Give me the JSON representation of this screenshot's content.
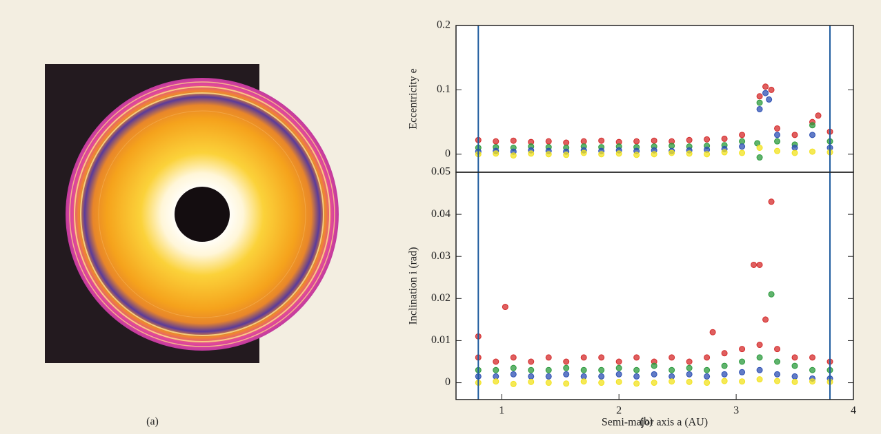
{
  "panel_labels": {
    "a": "(a)",
    "b": "(b)"
  },
  "chart_data": [
    {
      "type": "scatter",
      "y_label": "Eccentricity e",
      "xlim": [
        0.61,
        4
      ],
      "ylim": [
        -0.028,
        0.2
      ],
      "yticks": [
        0,
        0.1,
        0.2
      ],
      "vlines": [
        0.8,
        3.8
      ],
      "series": [
        {
          "color": "#d42a2a",
          "x": [
            0.8,
            0.95,
            1.1,
            1.25,
            1.4,
            1.55,
            1.7,
            1.85,
            2.0,
            2.15,
            2.3,
            2.45,
            2.6,
            2.75,
            2.9,
            3.05,
            3.2,
            3.35,
            3.5,
            3.65,
            3.8,
            3.25,
            3.3,
            3.7
          ],
          "values": [
            0.022,
            0.02,
            0.021,
            0.019,
            0.02,
            0.018,
            0.02,
            0.021,
            0.019,
            0.02,
            0.021,
            0.02,
            0.022,
            0.023,
            0.024,
            0.03,
            0.09,
            0.04,
            0.03,
            0.05,
            0.035,
            0.105,
            0.1,
            0.06
          ]
        },
        {
          "color": "#2b9a3c",
          "x": [
            0.8,
            0.95,
            1.1,
            1.25,
            1.4,
            1.55,
            1.7,
            1.85,
            2.0,
            2.15,
            2.3,
            2.45,
            2.6,
            2.75,
            2.9,
            3.05,
            3.2,
            3.35,
            3.5,
            3.65,
            3.8,
            3.18,
            3.2
          ],
          "values": [
            0.01,
            0.011,
            0.01,
            0.012,
            0.011,
            0.01,
            0.012,
            0.011,
            0.012,
            0.011,
            0.012,
            0.013,
            0.012,
            0.013,
            0.014,
            0.02,
            0.08,
            0.02,
            0.015,
            0.045,
            0.02,
            0.017,
            -0.005
          ]
        },
        {
          "color": "#2c4fb3",
          "x": [
            0.8,
            0.95,
            1.1,
            1.25,
            1.4,
            1.55,
            1.7,
            1.85,
            2.0,
            2.15,
            2.3,
            2.45,
            2.6,
            2.75,
            2.9,
            3.05,
            3.2,
            3.35,
            3.5,
            3.65,
            3.8,
            3.25,
            3.28
          ],
          "values": [
            0.004,
            0.005,
            0.004,
            0.006,
            0.005,
            0.004,
            0.006,
            0.005,
            0.006,
            0.005,
            0.006,
            0.005,
            0.006,
            0.007,
            0.008,
            0.012,
            0.07,
            0.03,
            0.01,
            0.03,
            0.01,
            0.095,
            0.085
          ]
        },
        {
          "color": "#f2e21c",
          "x": [
            0.8,
            0.95,
            1.1,
            1.25,
            1.4,
            1.55,
            1.7,
            1.85,
            2.0,
            2.15,
            2.3,
            2.45,
            2.6,
            2.75,
            2.9,
            3.05,
            3.2,
            3.35,
            3.5,
            3.65,
            3.8
          ],
          "values": [
            0,
            0.001,
            -0.002,
            0.001,
            0,
            -0.001,
            0.002,
            0,
            0.001,
            -0.001,
            0,
            0.002,
            0.001,
            0,
            0.003,
            0.002,
            0.01,
            0.005,
            0.002,
            0.004,
            0.003
          ]
        }
      ]
    },
    {
      "type": "scatter",
      "y_label": "Inclination i  (rad)",
      "x_label": "Semi-major axis a  (AU)",
      "xlim": [
        0.61,
        4
      ],
      "ylim": [
        -0.004,
        0.05
      ],
      "xticks": [
        1,
        2,
        3,
        4
      ],
      "yticks": [
        0,
        0.01,
        0.02,
        0.03,
        0.04,
        0.05
      ],
      "vlines": [
        0.8,
        3.8
      ],
      "series": [
        {
          "color": "#d42a2a",
          "x": [
            0.8,
            0.95,
            1.1,
            1.25,
            1.4,
            1.55,
            1.7,
            1.85,
            2.0,
            2.15,
            2.3,
            2.45,
            2.6,
            2.75,
            2.9,
            3.05,
            3.2,
            3.35,
            3.5,
            3.65,
            3.8,
            0.8,
            1.03,
            2.8,
            3.15,
            3.2,
            3.3,
            3.25
          ],
          "values": [
            0.006,
            0.005,
            0.006,
            0.005,
            0.006,
            0.005,
            0.006,
            0.006,
            0.005,
            0.006,
            0.005,
            0.006,
            0.005,
            0.006,
            0.007,
            0.008,
            0.009,
            0.008,
            0.006,
            0.006,
            0.005,
            0.011,
            0.018,
            0.012,
            0.028,
            0.028,
            0.043,
            0.015
          ]
        },
        {
          "color": "#2b9a3c",
          "x": [
            0.8,
            0.95,
            1.1,
            1.25,
            1.4,
            1.55,
            1.7,
            1.85,
            2.0,
            2.15,
            2.3,
            2.45,
            2.6,
            2.75,
            2.9,
            3.05,
            3.2,
            3.35,
            3.5,
            3.65,
            3.8,
            3.3
          ],
          "values": [
            0.003,
            0.003,
            0.0035,
            0.003,
            0.003,
            0.0035,
            0.003,
            0.003,
            0.0035,
            0.003,
            0.004,
            0.003,
            0.0035,
            0.003,
            0.004,
            0.005,
            0.006,
            0.005,
            0.004,
            0.003,
            0.003,
            0.021
          ]
        },
        {
          "color": "#2c4fb3",
          "x": [
            0.8,
            0.95,
            1.1,
            1.25,
            1.4,
            1.55,
            1.7,
            1.85,
            2.0,
            2.15,
            2.3,
            2.45,
            2.6,
            2.75,
            2.9,
            3.05,
            3.2,
            3.35,
            3.5,
            3.65,
            3.8
          ],
          "values": [
            0.0015,
            0.0015,
            0.002,
            0.0015,
            0.0015,
            0.002,
            0.0015,
            0.0015,
            0.002,
            0.0015,
            0.002,
            0.0015,
            0.002,
            0.0015,
            0.002,
            0.0025,
            0.003,
            0.002,
            0.0015,
            0.001,
            0.001
          ]
        },
        {
          "color": "#f2e21c",
          "x": [
            0.8,
            0.95,
            1.1,
            1.25,
            1.4,
            1.55,
            1.7,
            1.85,
            2.0,
            2.15,
            2.3,
            2.45,
            2.6,
            2.75,
            2.9,
            3.05,
            3.2,
            3.35,
            3.5,
            3.65,
            3.8
          ],
          "values": [
            0,
            0.0003,
            -0.0003,
            0.0002,
            0,
            -0.0002,
            0.0003,
            0,
            0.0002,
            -0.0002,
            0,
            0.0003,
            0.0002,
            0,
            0.0004,
            0.0003,
            0.0008,
            0.0004,
            0.0002,
            0.0003,
            0.0002
          ]
        }
      ]
    }
  ]
}
